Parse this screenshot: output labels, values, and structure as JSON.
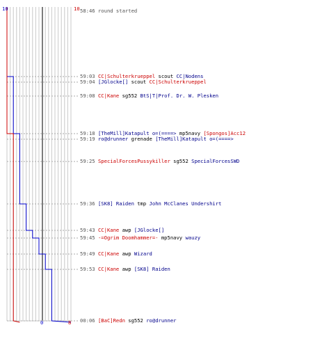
{
  "chart_data": {
    "type": "line",
    "title": "",
    "xlabel": "",
    "ylabel": "",
    "team_colors": {
      "blue": "#0000cc",
      "red": "#cc0000"
    },
    "start_counts": {
      "blue": "10",
      "red": "10"
    },
    "end_counts": {
      "blue": "0",
      "red": "8"
    },
    "series": [
      {
        "color": "#0000cc",
        "steps": [
          10,
          10,
          9,
          9,
          9,
          8,
          8,
          8,
          7,
          6,
          5,
          4,
          3,
          2,
          1,
          0
        ]
      },
      {
        "color": "#cc0000",
        "steps": [
          10,
          10,
          10,
          10,
          10,
          9,
          9,
          9,
          9,
          9,
          9,
          9,
          9,
          9,
          9,
          8
        ]
      }
    ]
  },
  "events": [
    {
      "time": "58:46",
      "parts": [
        {
          "c": "gray",
          "t": "round started"
        }
      ]
    },
    {
      "time": "59:03",
      "parts": [
        {
          "c": "red",
          "t": "CC|Schulterkrueppel"
        },
        {
          "c": "blk",
          "t": " scout "
        },
        {
          "c": "blue",
          "t": "CC|Nodens"
        }
      ]
    },
    {
      "time": "59:04",
      "parts": [
        {
          "c": "blue",
          "t": "[JGlocke[]"
        },
        {
          "c": "blk",
          "t": " scout "
        },
        {
          "c": "red",
          "t": "CC|Schulterkrueppel"
        }
      ]
    },
    {
      "time": "59:08",
      "parts": [
        {
          "c": "red",
          "t": "CC|Kane"
        },
        {
          "c": "blk",
          "t": " sg552 "
        },
        {
          "c": "blue",
          "t": "BtS|T|Prof. Dr. W. Plesken"
        }
      ]
    },
    {
      "time": "59:18",
      "parts": [
        {
          "c": "blue",
          "t": "[TheMill]Katapult o=(====>"
        },
        {
          "c": "blk",
          "t": " mp5navy "
        },
        {
          "c": "red",
          "t": "[Spongos]Acc12"
        }
      ]
    },
    {
      "time": "59:19",
      "parts": [
        {
          "c": "blue",
          "t": "ro@drunner"
        },
        {
          "c": "blk",
          "t": " grenade "
        },
        {
          "c": "blue",
          "t": "[TheMill]Katapult o=(====>"
        }
      ]
    },
    {
      "time": "59:25",
      "parts": [
        {
          "c": "red",
          "t": "SpecialForcesPussykiller"
        },
        {
          "c": "blk",
          "t": " sg552 "
        },
        {
          "c": "blue",
          "t": "SpecialForcesSWD"
        }
      ]
    },
    {
      "time": "59:36",
      "parts": [
        {
          "c": "blue",
          "t": "[SK8] Raiden"
        },
        {
          "c": "blk",
          "t": " tmp "
        },
        {
          "c": "blue",
          "t": "John McClanes Undershirt"
        }
      ]
    },
    {
      "time": "59:43",
      "parts": [
        {
          "c": "red",
          "t": "CC|Kane"
        },
        {
          "c": "blk",
          "t": " awp "
        },
        {
          "c": "blue",
          "t": "[JGlocke[]"
        }
      ]
    },
    {
      "time": "59:45",
      "parts": [
        {
          "c": "red",
          "t": "-=Ogrim Doomhammer=-"
        },
        {
          "c": "blk",
          "t": " mp5navy "
        },
        {
          "c": "blue",
          "t": "wauzy"
        }
      ]
    },
    {
      "time": "59:49",
      "parts": [
        {
          "c": "red",
          "t": "CC|Kane"
        },
        {
          "c": "blk",
          "t": " awp "
        },
        {
          "c": "blue",
          "t": "Wizard"
        }
      ]
    },
    {
      "time": "59:53",
      "parts": [
        {
          "c": "red",
          "t": "CC|Kane"
        },
        {
          "c": "blk",
          "t": " awp "
        },
        {
          "c": "blue",
          "t": "[SK8] Raiden"
        }
      ]
    },
    {
      "time": "00:06",
      "parts": [
        {
          "c": "red",
          "t": "[BaC]Redn"
        },
        {
          "c": "blk",
          "t": " sg552 "
        },
        {
          "c": "blue",
          "t": "ro@drunner"
        }
      ]
    }
  ]
}
